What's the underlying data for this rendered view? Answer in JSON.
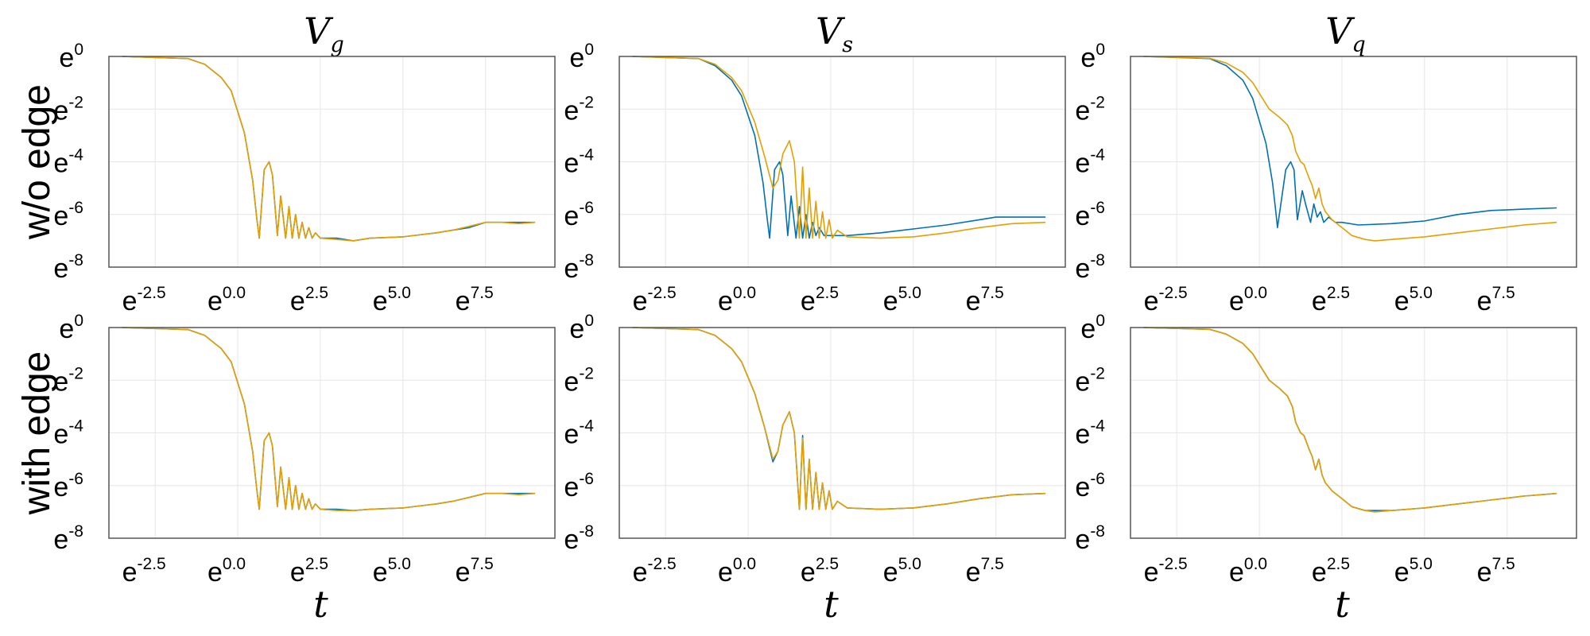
{
  "figure": {
    "col_titles": [
      {
        "base": "V",
        "sub": "g"
      },
      {
        "base": "V",
        "sub": "s"
      },
      {
        "base": "V",
        "sub": "q"
      }
    ],
    "row_labels": [
      "w/o edge",
      "with edge"
    ],
    "xlabel": "t"
  },
  "colors": {
    "series_1": "#0072B2",
    "series_2": "#E69F00",
    "frame": "#555555",
    "grid": "#e6e6e6"
  },
  "chart_data": [
    {
      "type": "line",
      "row": 0,
      "col": 0,
      "title": "V_g",
      "xlabel": "",
      "ylabel": "",
      "x_scale": "log_e",
      "y_scale": "log_e",
      "xlim_log": [
        -3.9,
        9.6
      ],
      "ylim_log": [
        -8,
        0
      ],
      "x_ticks": [
        "-2.5",
        "0.0",
        "2.5",
        "5.0",
        "7.5"
      ],
      "y_ticks": [
        "0",
        "-2",
        "-4",
        "-6",
        "-8"
      ],
      "grid": true,
      "series": [
        {
          "x_log": [
            -3.5,
            -1.5,
            -1.0,
            -0.5,
            -0.2,
            0.2,
            0.45,
            0.58,
            0.65,
            0.8,
            0.95,
            1.05,
            1.2,
            1.3,
            1.45,
            1.55,
            1.65,
            1.75,
            1.85,
            1.95,
            2.05,
            2.15,
            2.25,
            2.35,
            2.5,
            3.0,
            3.5,
            4.0,
            5.0,
            6.0,
            6.5,
            7.0,
            7.5,
            8.0,
            8.5,
            9.0
          ],
          "y_log": [
            0,
            -0.08,
            -0.3,
            -0.8,
            -1.3,
            -2.9,
            -4.7,
            -6.2,
            -6.9,
            -4.3,
            -4.0,
            -4.5,
            -6.8,
            -5.3,
            -6.9,
            -5.7,
            -6.9,
            -6.0,
            -6.9,
            -6.3,
            -6.9,
            -6.5,
            -6.9,
            -6.7,
            -6.9,
            -6.9,
            -7.0,
            -6.9,
            -6.85,
            -6.7,
            -6.6,
            -6.5,
            -6.3,
            -6.3,
            -6.3,
            -6.3
          ]
        },
        {
          "x_log": [
            -3.5,
            -1.5,
            -1.0,
            -0.5,
            -0.2,
            0.2,
            0.45,
            0.58,
            0.65,
            0.8,
            0.95,
            1.05,
            1.2,
            1.3,
            1.45,
            1.55,
            1.65,
            1.75,
            1.85,
            1.95,
            2.05,
            2.15,
            2.25,
            2.35,
            2.5,
            3.0,
            3.5,
            4.0,
            5.0,
            6.0,
            6.5,
            7.0,
            7.5,
            8.0,
            8.5,
            9.0
          ],
          "y_log": [
            0,
            -0.08,
            -0.3,
            -0.8,
            -1.3,
            -2.9,
            -4.7,
            -6.2,
            -6.9,
            -4.3,
            -4.0,
            -4.5,
            -6.8,
            -5.3,
            -6.9,
            -5.7,
            -6.9,
            -6.0,
            -6.9,
            -6.3,
            -6.9,
            -6.5,
            -6.9,
            -6.7,
            -6.9,
            -6.95,
            -7.0,
            -6.9,
            -6.85,
            -6.7,
            -6.6,
            -6.45,
            -6.3,
            -6.3,
            -6.35,
            -6.3
          ]
        }
      ]
    },
    {
      "type": "line",
      "row": 0,
      "col": 1,
      "title": "V_s",
      "xlabel": "",
      "ylabel": "",
      "x_scale": "log_e",
      "y_scale": "log_e",
      "xlim_log": [
        -3.9,
        9.6
      ],
      "ylim_log": [
        -8,
        0
      ],
      "x_ticks": [
        "-2.5",
        "0.0",
        "2.5",
        "5.0",
        "7.5"
      ],
      "y_ticks": [
        "0",
        "-2",
        "-4",
        "-6",
        "-8"
      ],
      "grid": true,
      "series": [
        {
          "x_log": [
            -3.5,
            -1.5,
            -1.0,
            -0.5,
            -0.2,
            0.2,
            0.45,
            0.58,
            0.65,
            0.8,
            0.95,
            1.05,
            1.2,
            1.3,
            1.45,
            1.55,
            1.65,
            1.75,
            1.85,
            1.95,
            2.05,
            2.15,
            2.3,
            2.5,
            3.0,
            4.0,
            5.0,
            6.0,
            7.0,
            7.5,
            8.0,
            9.0
          ],
          "y_log": [
            0,
            -0.08,
            -0.35,
            -0.9,
            -1.5,
            -3.0,
            -4.8,
            -6.2,
            -6.9,
            -4.3,
            -4.0,
            -4.5,
            -6.8,
            -5.3,
            -6.9,
            -5.7,
            -6.9,
            -6.0,
            -6.9,
            -6.3,
            -6.8,
            -6.5,
            -6.8,
            -6.8,
            -6.8,
            -6.7,
            -6.55,
            -6.4,
            -6.2,
            -6.1,
            -6.1,
            -6.1
          ]
        },
        {
          "x_log": [
            -3.5,
            -1.5,
            -1.0,
            -0.5,
            -0.2,
            0.2,
            0.5,
            0.75,
            0.9,
            1.05,
            1.25,
            1.4,
            1.55,
            1.65,
            1.75,
            1.85,
            1.95,
            2.05,
            2.15,
            2.25,
            2.35,
            2.45,
            2.55,
            2.7,
            3.0,
            4.0,
            5.0,
            6.0,
            7.0,
            8.0,
            9.0
          ],
          "y_log": [
            0,
            -0.08,
            -0.3,
            -0.8,
            -1.3,
            -2.5,
            -3.8,
            -5.0,
            -4.7,
            -3.7,
            -3.2,
            -4.0,
            -6.9,
            -4.2,
            -6.9,
            -5.0,
            -6.9,
            -5.5,
            -6.9,
            -5.9,
            -6.9,
            -6.2,
            -6.9,
            -6.6,
            -6.85,
            -6.9,
            -6.85,
            -6.7,
            -6.5,
            -6.35,
            -6.3
          ]
        }
      ]
    },
    {
      "type": "line",
      "row": 0,
      "col": 2,
      "title": "V_q",
      "xlabel": "",
      "ylabel": "",
      "x_scale": "log_e",
      "y_scale": "log_e",
      "xlim_log": [
        -3.9,
        9.6
      ],
      "ylim_log": [
        -8,
        0
      ],
      "x_ticks": [
        "-2.5",
        "0.0",
        "2.5",
        "5.0",
        "7.5"
      ],
      "y_ticks": [
        "0",
        "-2",
        "-4",
        "-6",
        "-8"
      ],
      "grid": true,
      "series": [
        {
          "x_log": [
            -3.5,
            -1.5,
            -1.0,
            -0.5,
            -0.2,
            0.2,
            0.4,
            0.5,
            0.55,
            0.8,
            0.95,
            1.05,
            1.15,
            1.3,
            1.4,
            1.55,
            1.65,
            1.75,
            1.85,
            1.95,
            2.1,
            2.3,
            2.5,
            3.0,
            4.0,
            5.0,
            6.0,
            7.0,
            8.0,
            9.0
          ],
          "y_log": [
            0,
            -0.08,
            -0.35,
            -0.9,
            -1.6,
            -3.3,
            -4.8,
            -5.9,
            -6.5,
            -4.3,
            -4.0,
            -4.3,
            -6.2,
            -5.1,
            -5.6,
            -6.3,
            -5.6,
            -6.1,
            -5.9,
            -6.3,
            -6.1,
            -6.3,
            -6.3,
            -6.4,
            -6.35,
            -6.25,
            -6.0,
            -5.85,
            -5.8,
            -5.75
          ]
        },
        {
          "x_log": [
            -3.5,
            -1.5,
            -1.0,
            -0.5,
            -0.2,
            0.0,
            0.3,
            0.6,
            0.85,
            1.0,
            1.1,
            1.25,
            1.35,
            1.5,
            1.6,
            1.7,
            1.8,
            1.9,
            2.0,
            2.2,
            2.5,
            2.8,
            3.2,
            3.5,
            4.0,
            5.0,
            6.0,
            7.0,
            8.0,
            9.0
          ],
          "y_log": [
            0,
            -0.07,
            -0.25,
            -0.6,
            -1.0,
            -1.4,
            -2.0,
            -2.3,
            -2.6,
            -3.0,
            -3.6,
            -4.0,
            -4.1,
            -4.6,
            -4.9,
            -5.4,
            -5.0,
            -5.6,
            -5.9,
            -6.2,
            -6.5,
            -6.8,
            -6.95,
            -7.0,
            -6.95,
            -6.85,
            -6.7,
            -6.55,
            -6.4,
            -6.3
          ]
        }
      ]
    },
    {
      "type": "line",
      "row": 1,
      "col": 0,
      "title": "",
      "xlabel": "t",
      "ylabel": "",
      "x_scale": "log_e",
      "y_scale": "log_e",
      "xlim_log": [
        -3.9,
        9.6
      ],
      "ylim_log": [
        -8,
        0
      ],
      "x_ticks": [
        "-2.5",
        "0.0",
        "2.5",
        "5.0",
        "7.5"
      ],
      "y_ticks": [
        "0",
        "-2",
        "-4",
        "-6",
        "-8"
      ],
      "grid": true,
      "series": [
        {
          "x_log": [
            -3.5,
            -1.5,
            -1.0,
            -0.5,
            -0.2,
            0.2,
            0.45,
            0.58,
            0.65,
            0.8,
            0.95,
            1.05,
            1.2,
            1.3,
            1.45,
            1.55,
            1.65,
            1.75,
            1.85,
            1.95,
            2.05,
            2.15,
            2.25,
            2.35,
            2.5,
            3.0,
            3.5,
            4.0,
            5.0,
            6.0,
            6.5,
            7.0,
            7.5,
            8.0,
            8.5,
            9.0
          ],
          "y_log": [
            0,
            -0.08,
            -0.3,
            -0.8,
            -1.3,
            -2.9,
            -4.7,
            -6.2,
            -6.9,
            -4.3,
            -4.0,
            -4.5,
            -6.8,
            -5.3,
            -6.9,
            -5.7,
            -6.9,
            -6.0,
            -6.9,
            -6.3,
            -6.9,
            -6.5,
            -6.9,
            -6.7,
            -6.9,
            -6.9,
            -6.95,
            -6.9,
            -6.85,
            -6.7,
            -6.6,
            -6.45,
            -6.3,
            -6.3,
            -6.3,
            -6.3
          ]
        },
        {
          "x_log": [
            -3.5,
            -1.5,
            -1.0,
            -0.5,
            -0.2,
            0.2,
            0.45,
            0.58,
            0.65,
            0.8,
            0.95,
            1.05,
            1.2,
            1.3,
            1.45,
            1.55,
            1.65,
            1.75,
            1.85,
            1.95,
            2.05,
            2.15,
            2.25,
            2.35,
            2.5,
            3.0,
            3.5,
            4.0,
            5.0,
            6.0,
            6.5,
            7.0,
            7.5,
            8.0,
            8.5,
            9.0
          ],
          "y_log": [
            0,
            -0.08,
            -0.3,
            -0.8,
            -1.3,
            -2.9,
            -4.7,
            -6.2,
            -6.9,
            -4.3,
            -4.0,
            -4.5,
            -6.8,
            -5.3,
            -6.9,
            -5.7,
            -6.9,
            -6.0,
            -6.9,
            -6.3,
            -6.9,
            -6.5,
            -6.9,
            -6.7,
            -6.9,
            -6.95,
            -6.95,
            -6.9,
            -6.85,
            -6.7,
            -6.6,
            -6.45,
            -6.3,
            -6.3,
            -6.35,
            -6.3
          ]
        }
      ]
    },
    {
      "type": "line",
      "row": 1,
      "col": 1,
      "title": "",
      "xlabel": "t",
      "ylabel": "",
      "x_scale": "log_e",
      "y_scale": "log_e",
      "xlim_log": [
        -3.9,
        9.6
      ],
      "ylim_log": [
        -8,
        0
      ],
      "x_ticks": [
        "-2.5",
        "0.0",
        "2.5",
        "5.0",
        "7.5"
      ],
      "y_ticks": [
        "0",
        "-2",
        "-4",
        "-6",
        "-8"
      ],
      "grid": true,
      "series": [
        {
          "x_log": [
            -3.5,
            -1.5,
            -1.0,
            -0.5,
            -0.2,
            0.2,
            0.5,
            0.75,
            0.9,
            1.05,
            1.25,
            1.4,
            1.55,
            1.65,
            1.75,
            1.85,
            1.95,
            2.05,
            2.15,
            2.25,
            2.35,
            2.45,
            2.55,
            2.7,
            3.0,
            4.0,
            5.0,
            6.0,
            7.0,
            8.0,
            9.0
          ],
          "y_log": [
            0,
            -0.08,
            -0.3,
            -0.8,
            -1.3,
            -2.5,
            -3.8,
            -5.1,
            -4.7,
            -3.7,
            -3.2,
            -4.0,
            -6.9,
            -4.1,
            -6.9,
            -5.0,
            -6.9,
            -5.5,
            -6.9,
            -5.9,
            -6.9,
            -6.2,
            -6.9,
            -6.6,
            -6.85,
            -6.9,
            -6.85,
            -6.7,
            -6.5,
            -6.35,
            -6.3
          ]
        },
        {
          "x_log": [
            -3.5,
            -1.5,
            -1.0,
            -0.5,
            -0.2,
            0.2,
            0.5,
            0.75,
            0.9,
            1.05,
            1.25,
            1.4,
            1.55,
            1.65,
            1.75,
            1.85,
            1.95,
            2.05,
            2.15,
            2.25,
            2.35,
            2.45,
            2.55,
            2.7,
            3.0,
            4.0,
            5.0,
            6.0,
            7.0,
            8.0,
            9.0
          ],
          "y_log": [
            0,
            -0.08,
            -0.3,
            -0.8,
            -1.3,
            -2.5,
            -3.8,
            -5.0,
            -4.7,
            -3.7,
            -3.2,
            -4.0,
            -6.9,
            -4.2,
            -6.9,
            -5.0,
            -6.9,
            -5.5,
            -6.9,
            -5.9,
            -6.9,
            -6.2,
            -6.9,
            -6.6,
            -6.85,
            -6.9,
            -6.85,
            -6.7,
            -6.5,
            -6.35,
            -6.3
          ]
        }
      ]
    },
    {
      "type": "line",
      "row": 1,
      "col": 2,
      "title": "",
      "xlabel": "t",
      "ylabel": "",
      "x_scale": "log_e",
      "y_scale": "log_e",
      "xlim_log": [
        -3.9,
        9.6
      ],
      "ylim_log": [
        -8,
        0
      ],
      "x_ticks": [
        "-2.5",
        "0.0",
        "2.5",
        "5.0",
        "7.5"
      ],
      "y_ticks": [
        "0",
        "-2",
        "-4",
        "-6",
        "-8"
      ],
      "grid": true,
      "series": [
        {
          "x_log": [
            -3.5,
            -1.5,
            -1.0,
            -0.5,
            -0.2,
            0.0,
            0.3,
            0.6,
            0.85,
            1.0,
            1.1,
            1.25,
            1.35,
            1.5,
            1.6,
            1.7,
            1.8,
            1.9,
            2.0,
            2.2,
            2.5,
            2.8,
            3.2,
            3.5,
            4.0,
            5.0,
            6.0,
            7.0,
            8.0,
            9.0
          ],
          "y_log": [
            0,
            -0.07,
            -0.25,
            -0.6,
            -1.0,
            -1.4,
            -2.0,
            -2.3,
            -2.6,
            -3.0,
            -3.6,
            -4.0,
            -4.1,
            -4.6,
            -4.9,
            -5.4,
            -5.0,
            -5.6,
            -5.9,
            -6.2,
            -6.5,
            -6.8,
            -6.95,
            -6.95,
            -6.95,
            -6.85,
            -6.7,
            -6.55,
            -6.4,
            -6.3
          ]
        },
        {
          "x_log": [
            -3.5,
            -1.5,
            -1.0,
            -0.5,
            -0.2,
            0.0,
            0.3,
            0.6,
            0.85,
            1.0,
            1.1,
            1.25,
            1.35,
            1.5,
            1.6,
            1.7,
            1.8,
            1.9,
            2.0,
            2.2,
            2.5,
            2.8,
            3.2,
            3.5,
            4.0,
            5.0,
            6.0,
            7.0,
            8.0,
            9.0
          ],
          "y_log": [
            0,
            -0.07,
            -0.25,
            -0.6,
            -1.0,
            -1.4,
            -2.0,
            -2.3,
            -2.6,
            -3.0,
            -3.6,
            -4.0,
            -4.1,
            -4.6,
            -4.9,
            -5.4,
            -5.0,
            -5.6,
            -5.9,
            -6.2,
            -6.5,
            -6.8,
            -6.95,
            -7.0,
            -6.95,
            -6.85,
            -6.7,
            -6.55,
            -6.4,
            -6.3
          ]
        }
      ]
    }
  ]
}
